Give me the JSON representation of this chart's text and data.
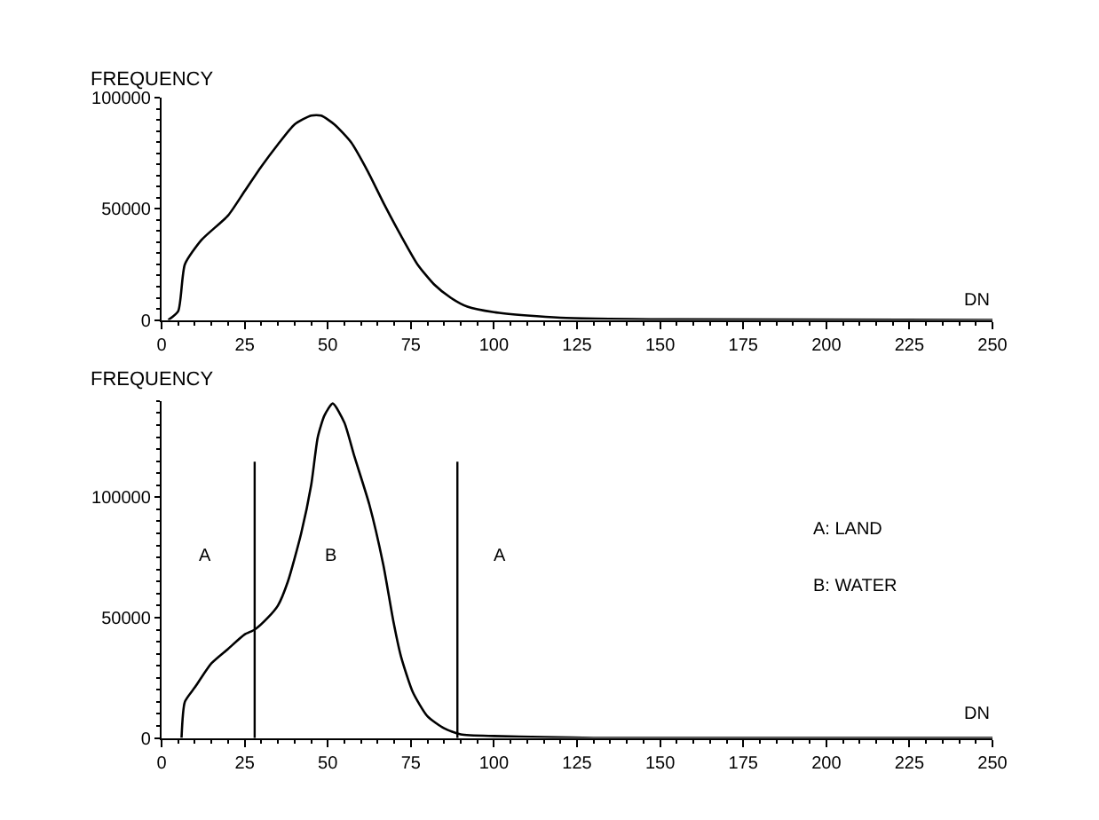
{
  "chart_data": [
    {
      "type": "line",
      "ylabel": "FREQUENCY",
      "xlabel": "DN",
      "xlim": [
        0,
        250
      ],
      "xticks": [
        0,
        25,
        50,
        75,
        100,
        125,
        150,
        175,
        200,
        225,
        250
      ],
      "ylim": [
        0,
        100000
      ],
      "yticks": [
        0,
        50000,
        100000
      ],
      "marker": "none",
      "line_style": "solid",
      "series": [
        {
          "color": "#000000",
          "x": [
            2,
            5,
            7,
            12,
            20,
            25,
            30,
            35,
            40,
            45,
            48,
            52,
            57,
            62,
            67,
            72,
            77,
            82,
            87,
            92,
            100,
            110,
            120,
            150,
            250
          ],
          "values": [
            0,
            4000,
            25000,
            36000,
            47000,
            58000,
            69000,
            79000,
            88000,
            92000,
            92000,
            88000,
            80000,
            67000,
            52000,
            38000,
            25000,
            16000,
            10000,
            6000,
            3500,
            2000,
            1000,
            300,
            0
          ]
        }
      ]
    },
    {
      "type": "line",
      "ylabel": "FREQUENCY",
      "xlabel": "DN",
      "xlim": [
        0,
        250
      ],
      "xticks": [
        0,
        25,
        50,
        75,
        100,
        125,
        150,
        175,
        200,
        225,
        250
      ],
      "ylim": [
        0,
        140000
      ],
      "yticks": [
        0,
        50000,
        100000
      ],
      "marker": "none",
      "line_style": "solid",
      "series": [
        {
          "color": "#000000",
          "x": [
            6,
            7,
            10,
            15,
            20,
            25,
            28,
            32,
            35,
            38,
            42,
            45,
            47,
            49,
            51.5,
            55,
            58,
            62.5,
            66.7,
            69.8,
            72,
            75.6,
            80,
            85,
            90,
            100,
            115,
            130,
            250
          ],
          "values": [
            0,
            15000,
            21000,
            31000,
            37000,
            43000,
            45000,
            50000,
            55000,
            65000,
            85000,
            105000,
            125000,
            134000,
            139000,
            131000,
            117000,
            97000,
            72000,
            48000,
            34000,
            19000,
            9000,
            4000,
            1500,
            800,
            400,
            0,
            0
          ]
        }
      ],
      "ref_lines": [
        {
          "axis": "x",
          "value": 28,
          "color": "#000000"
        },
        {
          "axis": "x",
          "value": 89,
          "color": "#000000"
        }
      ],
      "annotations": [
        "A",
        "B",
        "A",
        "A: LAND",
        "B: WATER"
      ]
    }
  ]
}
